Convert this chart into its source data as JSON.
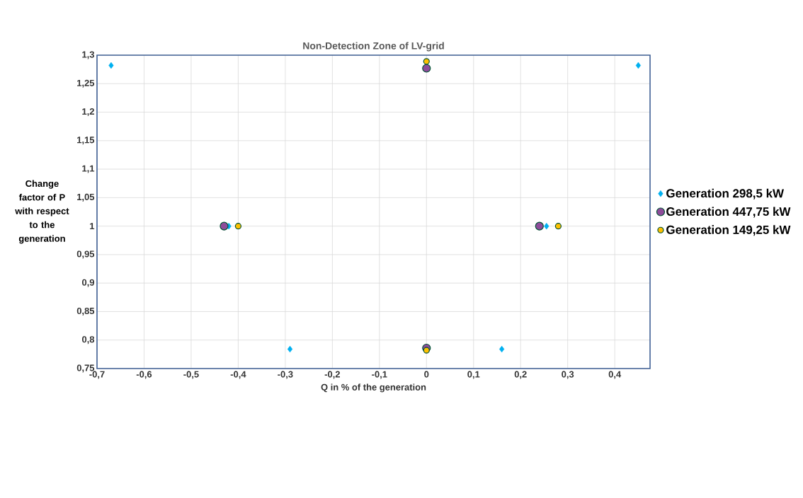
{
  "chart_data": {
    "type": "scatter",
    "title": "Non-Detection Zone of LV-grid",
    "xlabel": "Q in % of the generation",
    "ylabel": "Change factor of P with respect to the generation",
    "xlim": [
      -0.7,
      0.475
    ],
    "ylim": [
      0.75,
      1.3
    ],
    "xticks": [
      {
        "value": -0.7,
        "label": "-0,7"
      },
      {
        "value": -0.6,
        "label": "-0,6"
      },
      {
        "value": -0.5,
        "label": "-0,5"
      },
      {
        "value": -0.4,
        "label": "-0,4"
      },
      {
        "value": -0.3,
        "label": "-0,3"
      },
      {
        "value": -0.2,
        "label": "-0,2"
      },
      {
        "value": -0.1,
        "label": "-0,1"
      },
      0,
      {
        "value": 0.1,
        "label": "0,1"
      },
      {
        "value": 0.2,
        "label": "0,2"
      },
      {
        "value": 0.3,
        "label": "0,3"
      },
      {
        "value": 0.4,
        "label": "0,4"
      }
    ],
    "yticks": [
      {
        "value": 0.75,
        "label": "0,75"
      },
      {
        "value": 0.8,
        "label": "0,8"
      },
      {
        "value": 0.85,
        "label": "0,85"
      },
      {
        "value": 0.9,
        "label": "0,9"
      },
      {
        "value": 0.95,
        "label": "0,95"
      },
      1,
      {
        "value": 1.05,
        "label": "1,05"
      },
      {
        "value": 1.1,
        "label": "1,1"
      },
      {
        "value": 1.15,
        "label": "1,15"
      },
      {
        "value": 1.2,
        "label": "1,2"
      },
      {
        "value": 1.25,
        "label": "1,25"
      },
      {
        "value": 1.3,
        "label": "1,3"
      }
    ],
    "grid": true,
    "legend": "right",
    "series": [
      {
        "name": "Generation 298,5 kW",
        "color": "#00b0f0",
        "marker": "diamond",
        "x": [
          -0.67,
          -0.42,
          -0.29,
          0,
          0.16,
          0.255,
          0.45
        ],
        "values": [
          1.282,
          1.0,
          0.784,
          null,
          0.784,
          1.0,
          1.282
        ]
      },
      {
        "name": "Generation 447,75 kW",
        "color": "#8e4c9a",
        "marker": "circle",
        "x": [
          -0.43,
          0,
          0,
          0.24
        ],
        "values": [
          1.0,
          1.277,
          0.786,
          1.0
        ]
      },
      {
        "name": "Generation 149,25 kW",
        "color": "#ffc000",
        "marker": "circle",
        "x": [
          -0.4,
          0,
          0,
          0.28
        ],
        "values": [
          1.0,
          1.289,
          0.782,
          1.0
        ]
      }
    ]
  }
}
